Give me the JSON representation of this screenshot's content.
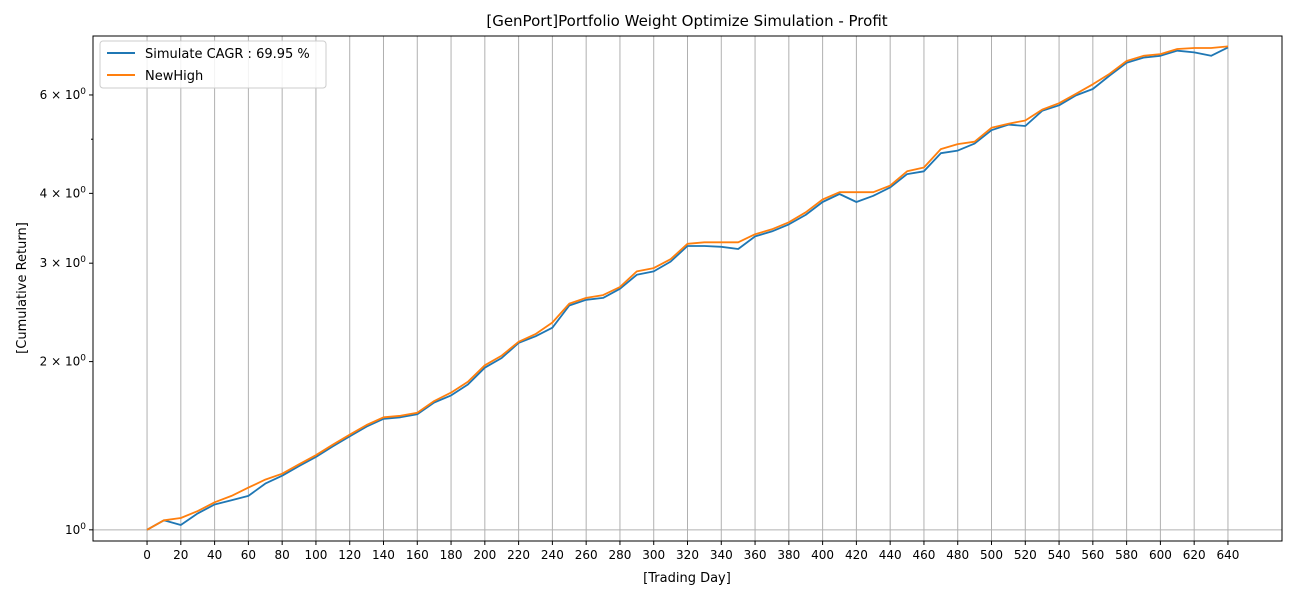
{
  "chart_data": {
    "type": "line",
    "title": "[GenPort]Portfolio Weight Optimize Simulation - Profit",
    "xlabel": "[Trading Day]",
    "ylabel": "[Cumulative Return]",
    "yscale": "log",
    "xlim": [
      -32,
      672
    ],
    "ylim": [
      0.955,
      7.65
    ],
    "grid": "vertical",
    "legend_position": "top-left",
    "x_ticks": [
      0,
      20,
      40,
      60,
      80,
      100,
      120,
      140,
      160,
      180,
      200,
      220,
      240,
      260,
      280,
      300,
      320,
      340,
      360,
      380,
      400,
      420,
      440,
      460,
      480,
      500,
      520,
      540,
      560,
      580,
      600,
      620,
      640
    ],
    "x_tick_labels": [
      "0",
      "20",
      "40",
      "60",
      "80",
      "100",
      "120",
      "140",
      "160",
      "180",
      "200",
      "220",
      "240",
      "260",
      "280",
      "300",
      "320",
      "340",
      "360",
      "380",
      "400",
      "420",
      "440",
      "460",
      "480",
      "500",
      "520",
      "540",
      "560",
      "580",
      "600",
      "620",
      "640"
    ],
    "y_ticks": [
      {
        "value": 1,
        "base": "10",
        "exp": "0",
        "coef": ""
      },
      {
        "value": 2,
        "base": "10",
        "exp": "0",
        "coef": "2 × "
      },
      {
        "value": 3,
        "base": "10",
        "exp": "0",
        "coef": "3 × "
      },
      {
        "value": 4,
        "base": "10",
        "exp": "0",
        "coef": "4 × "
      },
      {
        "value": 6,
        "base": "10",
        "exp": "0",
        "coef": "6 × "
      }
    ],
    "y_minor_ticks": [
      5
    ],
    "x": [
      0,
      10,
      20,
      30,
      40,
      50,
      60,
      70,
      80,
      90,
      100,
      110,
      120,
      130,
      140,
      150,
      160,
      170,
      180,
      190,
      200,
      210,
      220,
      230,
      240,
      250,
      260,
      270,
      280,
      290,
      300,
      310,
      320,
      330,
      340,
      350,
      360,
      370,
      380,
      390,
      400,
      410,
      420,
      430,
      440,
      450,
      460,
      470,
      480,
      490,
      500,
      510,
      520,
      530,
      540,
      550,
      560,
      570,
      580,
      590,
      600,
      610,
      620,
      630,
      640
    ],
    "series": [
      {
        "name": "Simulate CAGR : 69.95 %",
        "color": "#1f77b4",
        "values": [
          1.0,
          1.04,
          1.02,
          1.07,
          1.11,
          1.13,
          1.15,
          1.21,
          1.25,
          1.3,
          1.35,
          1.41,
          1.47,
          1.53,
          1.58,
          1.59,
          1.61,
          1.69,
          1.74,
          1.82,
          1.95,
          2.03,
          2.16,
          2.22,
          2.3,
          2.52,
          2.58,
          2.6,
          2.7,
          2.86,
          2.9,
          3.02,
          3.22,
          3.22,
          3.21,
          3.18,
          3.35,
          3.42,
          3.52,
          3.66,
          3.86,
          3.99,
          3.86,
          3.96,
          4.1,
          4.33,
          4.38,
          4.72,
          4.77,
          4.91,
          5.19,
          5.31,
          5.28,
          5.62,
          5.75,
          5.99,
          6.15,
          6.5,
          6.85,
          7.0,
          7.05,
          7.2,
          7.15,
          7.05,
          7.3
        ]
      },
      {
        "name": "NewHigh",
        "color": "#ff7f0e",
        "values": [
          1.0,
          1.04,
          1.05,
          1.08,
          1.12,
          1.15,
          1.19,
          1.23,
          1.26,
          1.31,
          1.36,
          1.42,
          1.48,
          1.54,
          1.59,
          1.6,
          1.62,
          1.7,
          1.76,
          1.84,
          1.97,
          2.05,
          2.17,
          2.24,
          2.35,
          2.54,
          2.6,
          2.63,
          2.72,
          2.9,
          2.94,
          3.05,
          3.25,
          3.27,
          3.27,
          3.27,
          3.38,
          3.45,
          3.55,
          3.7,
          3.9,
          4.02,
          4.02,
          4.02,
          4.13,
          4.38,
          4.45,
          4.8,
          4.9,
          4.95,
          5.24,
          5.33,
          5.4,
          5.65,
          5.8,
          6.03,
          6.27,
          6.55,
          6.9,
          7.05,
          7.1,
          7.25,
          7.28,
          7.28,
          7.33
        ]
      }
    ]
  }
}
